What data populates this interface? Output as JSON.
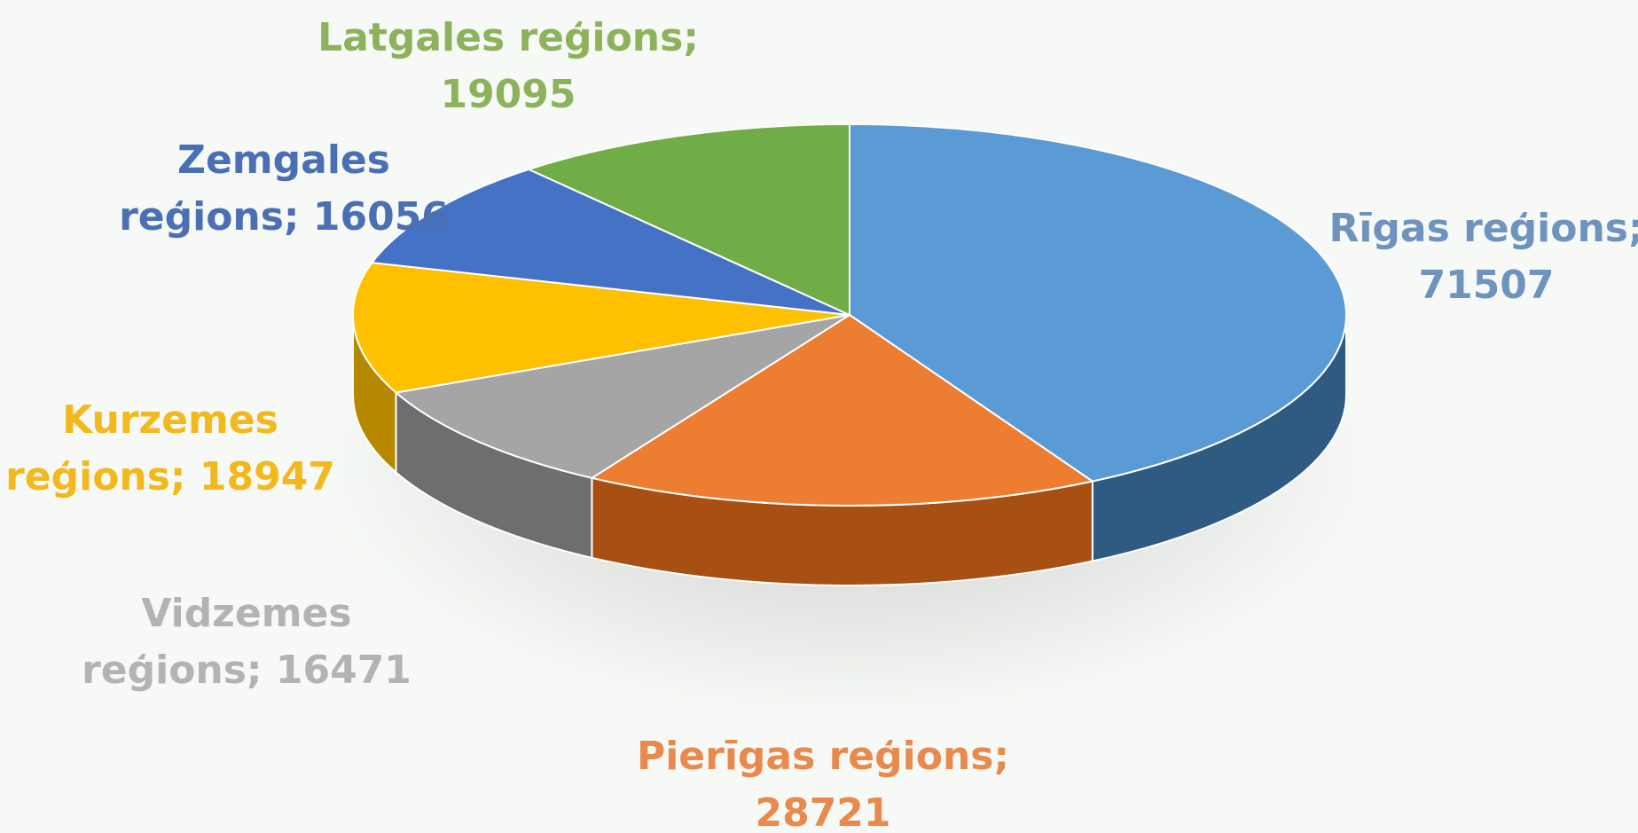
{
  "chart_data": {
    "type": "pie",
    "style": "3d",
    "title": "",
    "legend": "none",
    "slices": [
      {
        "label": "Rīgas reģions",
        "value": 71507,
        "color": "#5b9bd5",
        "side_color": "#2f5b82"
      },
      {
        "label": "Pierīgas reģions",
        "value": 28721,
        "color": "#ed7d31",
        "side_color": "#a84f14"
      },
      {
        "label": "Vidzemes reģions",
        "value": 16471,
        "color": "#a5a5a5",
        "side_color": "#6e6e6e"
      },
      {
        "label": "Kurzemes reģions",
        "value": 18947,
        "color": "#ffc000",
        "side_color": "#b58800"
      },
      {
        "label": "Zemgales reģions",
        "value": 16056,
        "color": "#4472c4",
        "side_color": "#2b4a85"
      },
      {
        "label": "Latgales reģions",
        "value": 19095,
        "color": "#70ad47",
        "side_color": "#4a7a2c"
      }
    ],
    "data_labels": [
      {
        "line1": "Rīgas  reģions;",
        "line2": "71507",
        "color": "#6e93bf"
      },
      {
        "line1": "Pierīgas reģions;",
        "line2": "28721",
        "color": "#e88a4d"
      },
      {
        "line1": "Vidzemes",
        "line2": "reģions; 16471",
        "color": "#b3b3b3"
      },
      {
        "line1": "Kurzemes",
        "line2": "reģions; 18947",
        "color": "#f2b81c"
      },
      {
        "line1": "Zemgales",
        "line2": "reģions; 16056",
        "color": "#4a6fb5"
      },
      {
        "line1": "Latgales reģions;",
        "line2": "19095",
        "color": "#8cb35c"
      }
    ]
  }
}
